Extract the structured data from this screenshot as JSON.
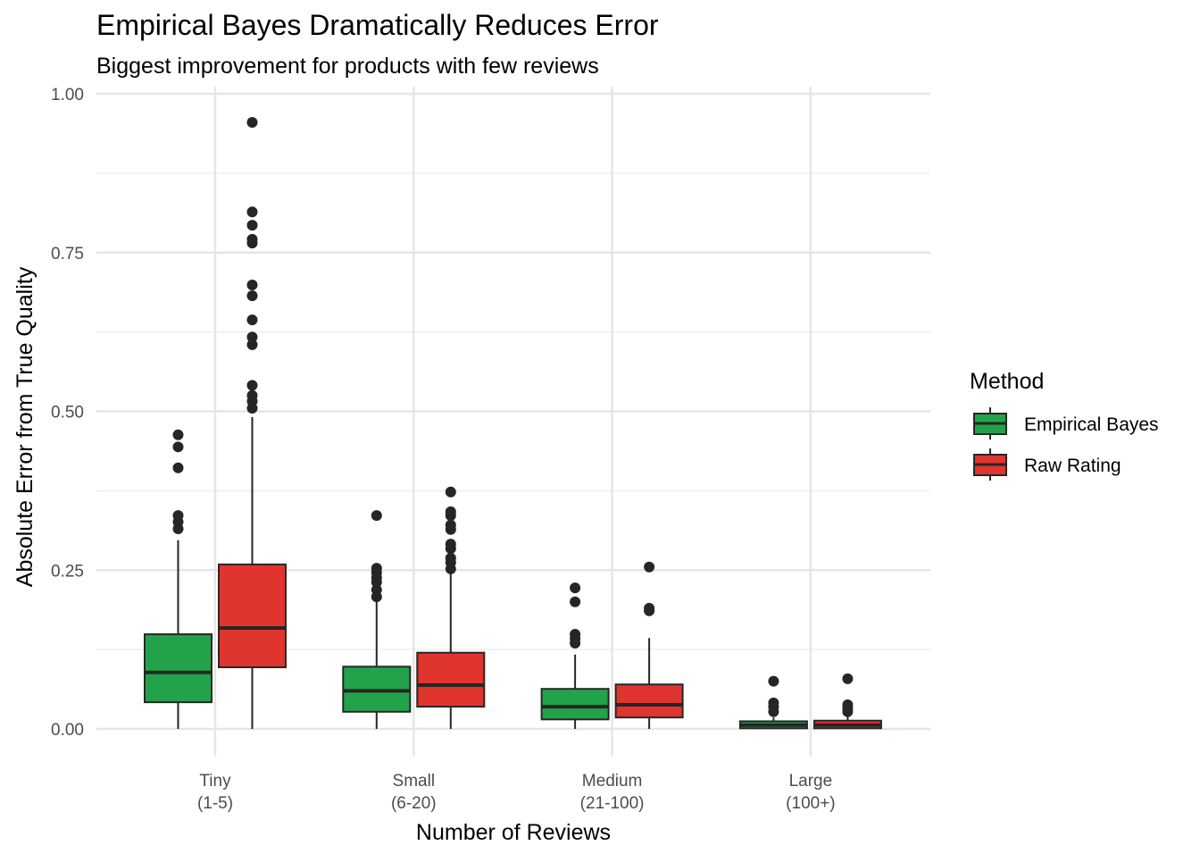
{
  "chart_data": {
    "type": "boxplot",
    "title": "Empirical Bayes Dramatically Reduces Error",
    "subtitle": "Biggest improvement for products with few reviews",
    "xlabel": "Number of Reviews",
    "ylabel": "Absolute Error from True Quality",
    "ylim": [
      0,
      1
    ],
    "yticks": [
      0,
      0.25,
      0.5,
      0.75,
      1
    ],
    "ytick_labels": [
      "0.00",
      "0.25",
      "0.50",
      "0.75",
      "1.00"
    ],
    "grid": true,
    "categories": [
      {
        "line1": "Tiny",
        "line2": "(1-5)"
      },
      {
        "line1": "Small",
        "line2": "(6-20)"
      },
      {
        "line1": "Medium",
        "line2": "(21-100)"
      },
      {
        "line1": "Large",
        "line2": "(100+)"
      }
    ],
    "legend": {
      "title": "Method",
      "placement": "right"
    },
    "series": [
      {
        "name": "Empirical Bayes",
        "color": "#22A34A",
        "boxes": [
          {
            "lower": 0,
            "q1": 0.042,
            "median": 0.089,
            "q3": 0.149,
            "upper": 0.297,
            "outliers": [
              0.463,
              0.444,
              0.411,
              0.336,
              0.326,
              0.315
            ]
          },
          {
            "lower": 0,
            "q1": 0.027,
            "median": 0.06,
            "q3": 0.098,
            "upper": 0.203,
            "outliers": [
              0.336,
              0.253,
              0.246,
              0.238,
              0.231,
              0.219,
              0.208
            ]
          },
          {
            "lower": 0,
            "q1": 0.015,
            "median": 0.035,
            "q3": 0.063,
            "upper": 0.117,
            "outliers": [
              0.222,
              0.2,
              0.149,
              0.142,
              0.135
            ]
          },
          {
            "lower": 0,
            "q1": 0.001,
            "median": 0.006,
            "q3": 0.012,
            "upper": 0.018,
            "outliers": [
              0.075,
              0.041,
              0.035,
              0.027
            ]
          }
        ]
      },
      {
        "name": "Raw Rating",
        "color": "#E0352F",
        "boxes": [
          {
            "lower": 0,
            "q1": 0.097,
            "median": 0.159,
            "q3": 0.259,
            "upper": 0.491,
            "outliers": [
              0.955,
              0.814,
              0.793,
              0.771,
              0.765,
              0.699,
              0.682,
              0.644,
              0.617,
              0.605,
              0.541,
              0.525,
              0.516,
              0.505
            ]
          },
          {
            "lower": 0,
            "q1": 0.035,
            "median": 0.069,
            "q3": 0.12,
            "upper": 0.245,
            "outliers": [
              0.373,
              0.342,
              0.336,
              0.321,
              0.314,
              0.291,
              0.284,
              0.269,
              0.262,
              0.252
            ]
          },
          {
            "lower": 0,
            "q1": 0.018,
            "median": 0.038,
            "q3": 0.07,
            "upper": 0.143,
            "outliers": [
              0.255,
              0.19,
              0.186
            ]
          },
          {
            "lower": 0,
            "q1": 0.001,
            "median": 0.006,
            "q3": 0.013,
            "upper": 0.02,
            "outliers": [
              0.079,
              0.038,
              0.032,
              0.027
            ]
          }
        ]
      }
    ]
  }
}
